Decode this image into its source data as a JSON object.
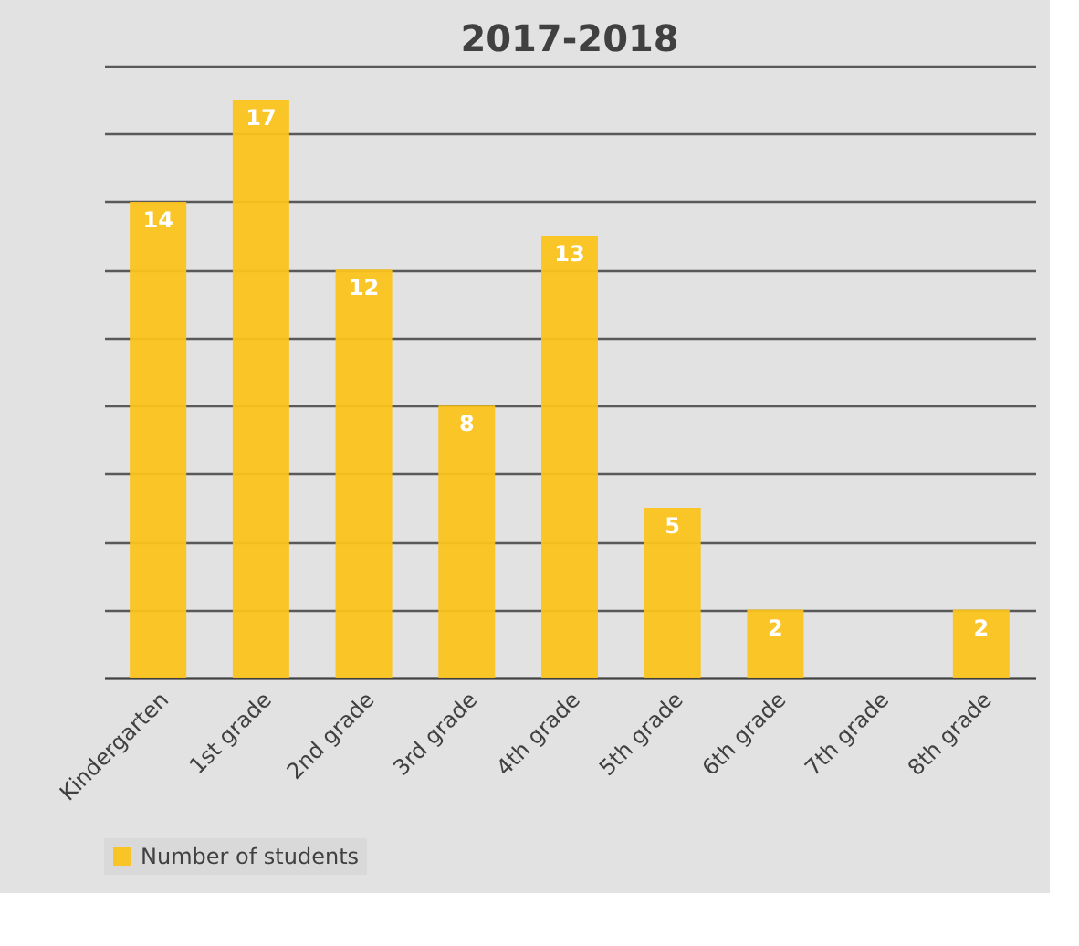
{
  "chart_data": {
    "type": "bar",
    "title": "2017-2018",
    "categories": [
      "Kindergarten",
      "1st grade",
      "2nd grade",
      "3rd grade",
      "4th grade",
      "5th grade",
      "6th grade",
      "7th grade",
      "8th grade"
    ],
    "series": [
      {
        "name": "Number of students",
        "color": "#fbc31c",
        "values": [
          14,
          17,
          12,
          8,
          13,
          5,
          2,
          0,
          2
        ],
        "value_labels": [
          "14",
          "17",
          "12",
          "8",
          "13",
          "5",
          "2",
          null,
          "2"
        ]
      }
    ],
    "tick_labels": "x",
    "grid": "y",
    "legend": "bottom"
  }
}
